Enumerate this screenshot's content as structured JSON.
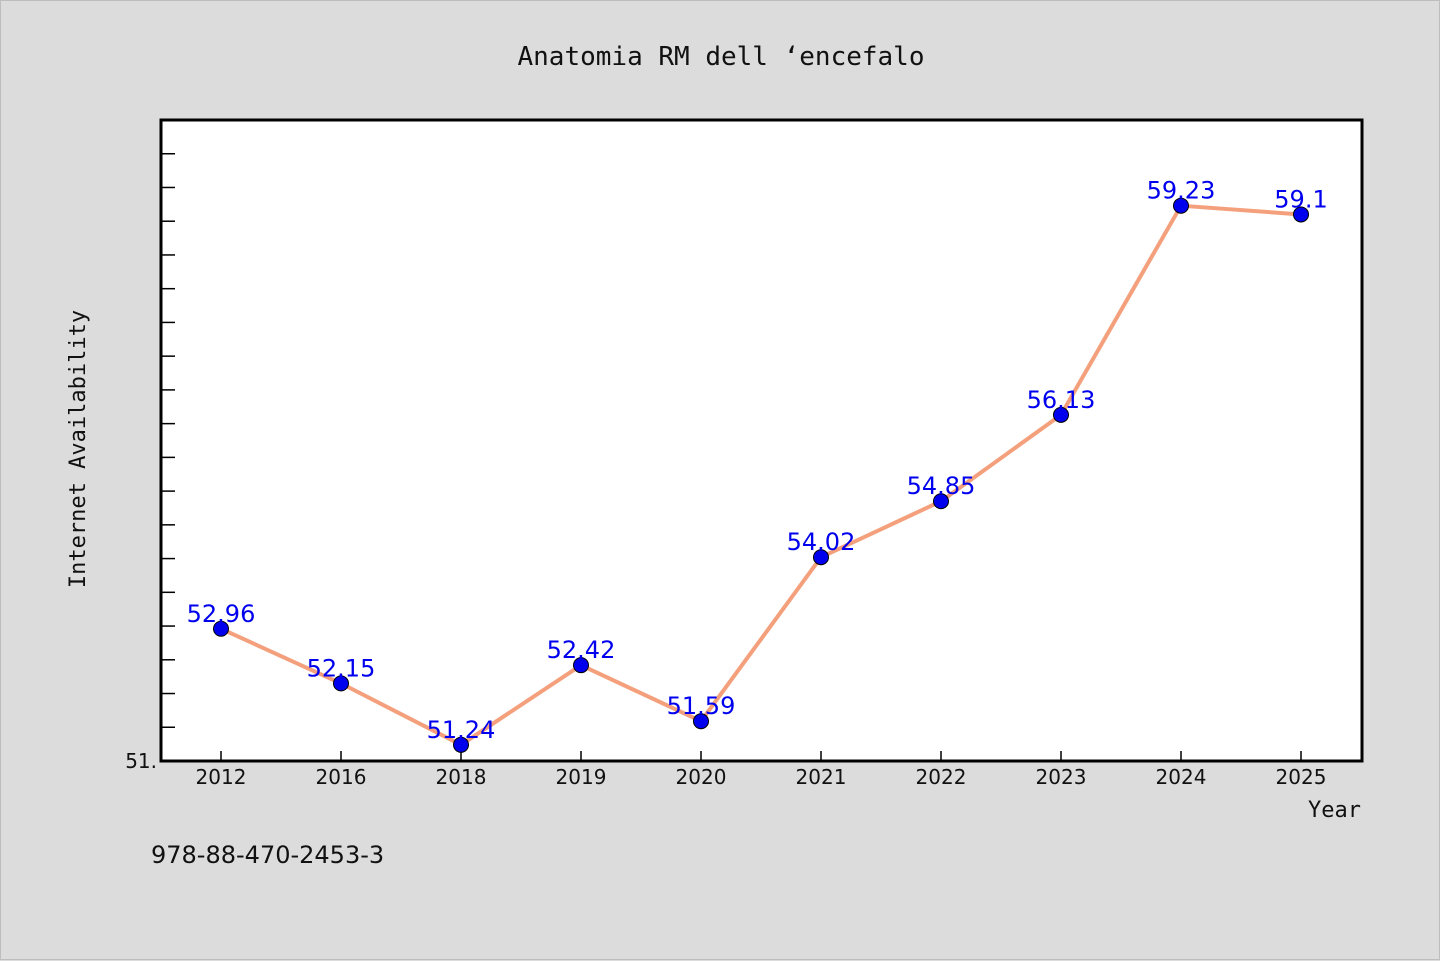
{
  "chart_data": {
    "type": "line",
    "title": "Anatomia RM dell ‘encefalo",
    "xlabel": "Year",
    "ylabel": "Internet Availability",
    "categories": [
      "2012",
      "2016",
      "2018",
      "2019",
      "2020",
      "2021",
      "2022",
      "2023",
      "2024",
      "2025"
    ],
    "series": [
      {
        "values": [
          52.96,
          52.15,
          51.24,
          52.42,
          51.59,
          54.02,
          54.85,
          56.13,
          59.23,
          59.1
        ],
        "labels": [
          "52.96",
          "52.15",
          "51.24",
          "52.42",
          "51.59",
          "54.02",
          "54.85",
          "56.13",
          "59.23",
          "59.1"
        ],
        "line_color": "#f4a07c",
        "marker_color": "#0000ee"
      }
    ],
    "ylim": [
      51.0,
      60.5
    ],
    "y_tick_label": "51.",
    "grid": false,
    "legend": false
  },
  "footer": {
    "text": "978-88-470-2453-3"
  }
}
